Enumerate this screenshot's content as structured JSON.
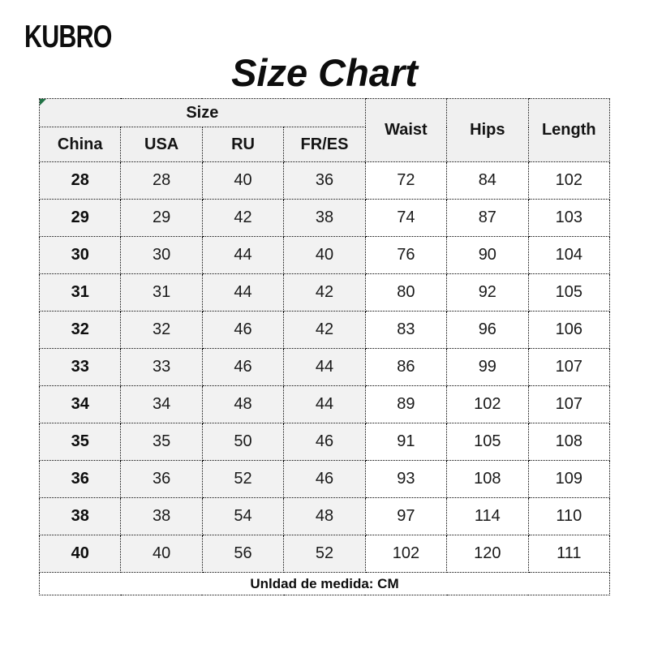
{
  "brand": "KUBRO",
  "title": "Size Chart",
  "chart_data": {
    "type": "table",
    "title": "Size Chart",
    "column_group_header": "Size",
    "size_columns": [
      "China",
      "USA",
      "RU",
      "FR/ES"
    ],
    "measure_columns": [
      "Waist",
      "Hips",
      "Length"
    ],
    "unit": "CM",
    "footer_note": "Unldad de medida: CM",
    "rows": [
      [
        "28",
        "28",
        "40",
        "36",
        "72",
        "84",
        "102"
      ],
      [
        "29",
        "29",
        "42",
        "38",
        "74",
        "87",
        "103"
      ],
      [
        "30",
        "30",
        "44",
        "40",
        "76",
        "90",
        "104"
      ],
      [
        "31",
        "31",
        "44",
        "42",
        "80",
        "92",
        "105"
      ],
      [
        "32",
        "32",
        "46",
        "42",
        "83",
        "96",
        "106"
      ],
      [
        "33",
        "33",
        "46",
        "44",
        "86",
        "99",
        "107"
      ],
      [
        "34",
        "34",
        "48",
        "44",
        "89",
        "102",
        "107"
      ],
      [
        "35",
        "35",
        "50",
        "46",
        "91",
        "105",
        "108"
      ],
      [
        "36",
        "36",
        "52",
        "46",
        "93",
        "108",
        "109"
      ],
      [
        "38",
        "38",
        "54",
        "48",
        "97",
        "114",
        "110"
      ],
      [
        "40",
        "40",
        "56",
        "52",
        "102",
        "120",
        "111"
      ]
    ]
  },
  "colors": {
    "header_bg": "#f0f0f0",
    "size_cell_bg": "#f2f2f2",
    "white_cell_bg": "#ffffff",
    "border": "#000000",
    "corner_marker_green": "#217346",
    "text": "#111111"
  }
}
